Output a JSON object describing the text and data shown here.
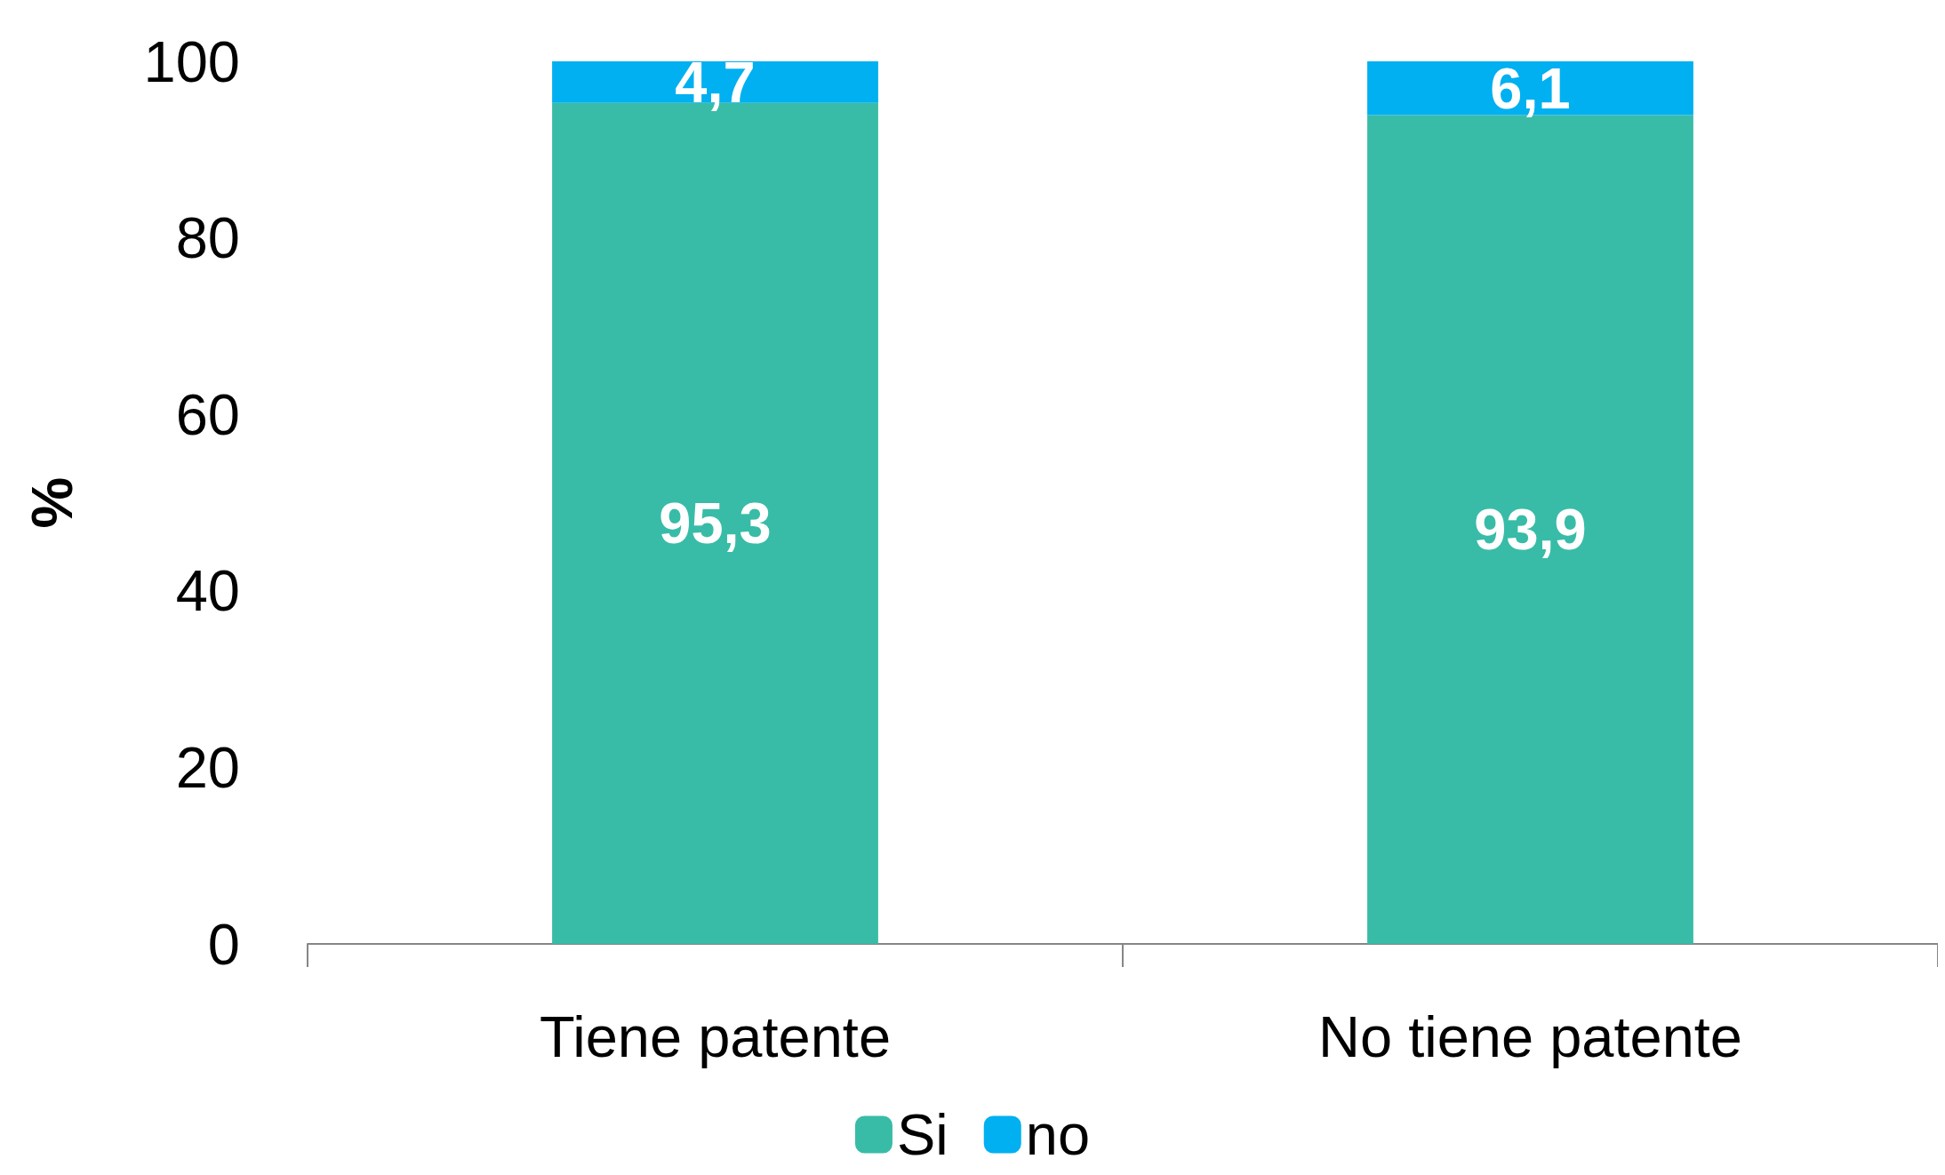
{
  "chart_data": {
    "type": "bar",
    "ylabel": "%",
    "categories": [
      "Tiene patente",
      "No tiene patente"
    ],
    "stacked": true,
    "ylim": [
      0,
      100
    ],
    "yticks": [
      0,
      20,
      40,
      60,
      80,
      100
    ],
    "legend": "bottom",
    "series": [
      {
        "name": "Si",
        "color": "#38bca7",
        "values": [
          95.3,
          93.9
        ],
        "value_labels": [
          "95,3",
          "93,9"
        ]
      },
      {
        "name": "no",
        "color": "#00b0f0",
        "values": [
          4.7,
          6.1
        ],
        "value_labels": [
          "4,7",
          "6,1"
        ]
      }
    ]
  }
}
